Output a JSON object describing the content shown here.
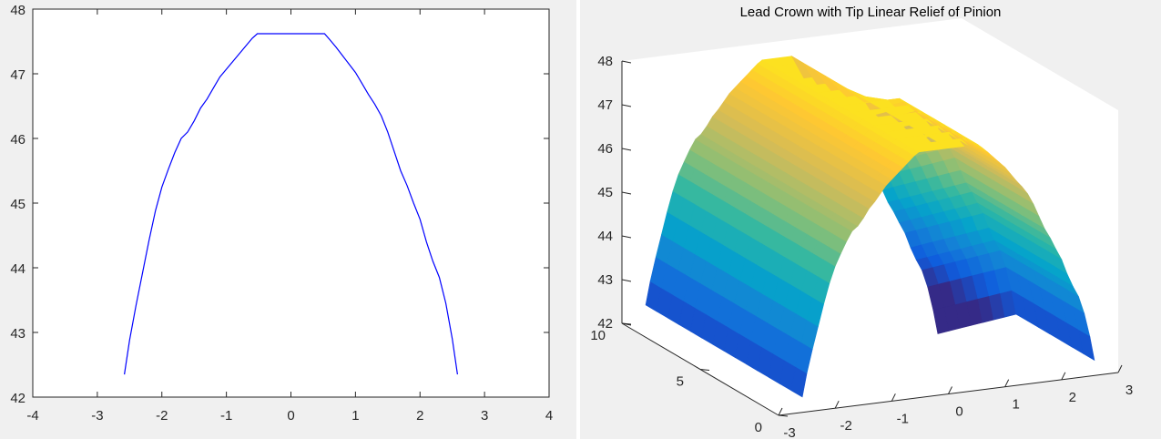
{
  "chart_data": [
    {
      "type": "line",
      "title": "",
      "xlabel": "",
      "ylabel": "",
      "xlim": [
        -4,
        4
      ],
      "ylim": [
        42,
        48
      ],
      "xticks": [
        -4,
        -3,
        -2,
        -1,
        0,
        1,
        2,
        3,
        4
      ],
      "yticks": [
        42,
        43,
        44,
        45,
        46,
        47,
        48
      ],
      "grid": false,
      "box": true,
      "series_color": "#0000ff",
      "series": [
        {
          "x": [
            -2.58,
            -2.5,
            -2.4,
            -2.3,
            -2.2,
            -2.1,
            -2.0,
            -1.9,
            -1.8,
            -1.7,
            -1.6,
            -1.5,
            -1.4,
            -1.3,
            -1.2,
            -1.1,
            -1.0,
            -0.9,
            -0.8,
            -0.7,
            -0.6,
            -0.52,
            0.0,
            0.52,
            0.6,
            0.7,
            0.8,
            0.9,
            1.0,
            1.1,
            1.2,
            1.3,
            1.4,
            1.5,
            1.6,
            1.7,
            1.8,
            1.9,
            2.0,
            2.1,
            2.2,
            2.3,
            2.4,
            2.5,
            2.58
          ],
          "y": [
            42.35,
            42.88,
            43.42,
            43.92,
            44.42,
            44.88,
            45.25,
            45.52,
            45.78,
            46.0,
            46.1,
            46.27,
            46.47,
            46.61,
            46.78,
            46.95,
            47.07,
            47.19,
            47.31,
            47.43,
            47.55,
            47.62,
            47.62,
            47.62,
            47.53,
            47.41,
            47.28,
            47.15,
            47.02,
            46.85,
            46.68,
            46.53,
            46.35,
            46.1,
            45.8,
            45.5,
            45.27,
            45.0,
            44.75,
            44.4,
            44.1,
            43.85,
            43.45,
            42.9,
            42.35
          ]
        }
      ]
    },
    {
      "type": "surface",
      "title": "Lead Crown with Tip Linear Relief of Pinion",
      "xlabel": "",
      "ylabel": "",
      "zlabel": "",
      "xlim": [
        -3,
        3
      ],
      "ylim": [
        0,
        10
      ],
      "zlim": [
        42,
        48
      ],
      "xticks": [
        -3,
        -2,
        -1,
        0,
        1,
        2,
        3
      ],
      "yticks": [
        0,
        5,
        10
      ],
      "zticks": [
        42,
        43,
        44,
        45,
        46,
        47,
        48
      ],
      "colormap": "parula",
      "colormap_stops": [
        "#352a87",
        "#0f5cdd",
        "#1481d6",
        "#06a4ca",
        "#2eb7a4",
        "#87bf77",
        "#d1bb59",
        "#fec832",
        "#f9fb0e"
      ],
      "box_color": "#ffffff",
      "surface": {
        "x": [
          -2.58,
          -2.5,
          -2.4,
          -2.3,
          -2.2,
          -2.1,
          -2.0,
          -1.9,
          -1.8,
          -1.7,
          -1.6,
          -1.5,
          -1.4,
          -1.3,
          -1.2,
          -1.1,
          -1.0,
          -0.9,
          -0.8,
          -0.7,
          -0.6,
          -0.52,
          0.0,
          0.52,
          0.6,
          0.7,
          0.8,
          0.9,
          1.0,
          1.1,
          1.2,
          1.3,
          1.4,
          1.5,
          1.6,
          1.7,
          1.8,
          1.9,
          2.0,
          2.1,
          2.2,
          2.3,
          2.4,
          2.5,
          2.58
        ],
        "y_range": [
          0,
          10
        ],
        "z_at_y0": [
          42.35,
          42.88,
          43.42,
          43.92,
          44.42,
          44.88,
          45.25,
          45.52,
          45.78,
          46.0,
          46.1,
          46.27,
          46.47,
          46.61,
          46.78,
          46.95,
          47.07,
          47.19,
          47.31,
          47.43,
          47.55,
          47.62,
          47.62,
          47.62,
          47.53,
          47.41,
          47.28,
          47.15,
          47.02,
          46.85,
          46.68,
          46.53,
          46.35,
          46.1,
          45.8,
          45.5,
          45.27,
          45.0,
          44.75,
          44.4,
          44.1,
          43.85,
          43.45,
          42.9,
          42.35
        ],
        "tip_relief_y": 5,
        "tip_relief_drop": 1.5
      }
    }
  ]
}
